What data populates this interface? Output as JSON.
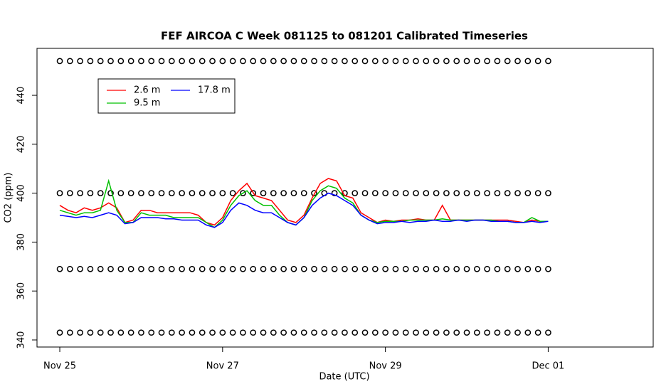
{
  "chart_data": {
    "type": "line",
    "title": "FEF AIRCOA C  Week 081125 to 081201  Calibrated Timeseries",
    "x_label": "Date (UTC)",
    "y_label": "CO2 (ppm)",
    "xlim": [
      -0.28,
      7.29
    ],
    "ylim": [
      337.1,
      459.2
    ],
    "xticks": [
      {
        "value": 0,
        "label": "Nov 25"
      },
      {
        "value": 2,
        "label": "Nov 27"
      },
      {
        "value": 4,
        "label": "Nov 29"
      },
      {
        "value": 6,
        "label": "Dec 01"
      }
    ],
    "yticks": [
      340,
      360,
      380,
      400,
      420,
      440
    ],
    "x": [
      0,
      0.1,
      0.2,
      0.3,
      0.4,
      0.5,
      0.6,
      0.7,
      0.8,
      0.9,
      1,
      1.1,
      1.2,
      1.3,
      1.4,
      1.5,
      1.6,
      1.7,
      1.8,
      1.9,
      2,
      2.1,
      2.2,
      2.3,
      2.4,
      2.5,
      2.6,
      2.7,
      2.8,
      2.9,
      3,
      3.1,
      3.2,
      3.3,
      3.4,
      3.5,
      3.6,
      3.7,
      3.8,
      3.9,
      4,
      4.1,
      4.2,
      4.3,
      4.4,
      4.5,
      4.6,
      4.7,
      4.8,
      4.9,
      5,
      5.1,
      5.2,
      5.3,
      5.4,
      5.5,
      5.6,
      5.7,
      5.8,
      5.9,
      6
    ],
    "series": [
      {
        "name": "2.6 m",
        "color": "#ff0000",
        "values": [
          395,
          393,
          392,
          394,
          393,
          394,
          396,
          394,
          388,
          389,
          393,
          393,
          392,
          392,
          392,
          392,
          392,
          391,
          388,
          387,
          390,
          397,
          401,
          404,
          399,
          398,
          397,
          393,
          389,
          388,
          391,
          398,
          404,
          406,
          405,
          399,
          398,
          392,
          390,
          388,
          389,
          388.5,
          389,
          389,
          389.5,
          389,
          389,
          395,
          389,
          389,
          389,
          389,
          389,
          389,
          389,
          389,
          388.5,
          388,
          389,
          388.5,
          388.5
        ]
      },
      {
        "name": "9.5 m",
        "color": "#00c000",
        "values": [
          393,
          392,
          391,
          392,
          392,
          393,
          405,
          393,
          388,
          388,
          392,
          391,
          391,
          391,
          390,
          390,
          390,
          390,
          388,
          386,
          389,
          395,
          399,
          401,
          397,
          395,
          395,
          391,
          388,
          387,
          390,
          397,
          401,
          403,
          402,
          398,
          396,
          391,
          389,
          388,
          388.5,
          388.5,
          388.5,
          389,
          389,
          389,
          389,
          389.5,
          389,
          389,
          389,
          389,
          389,
          389,
          388.5,
          388.5,
          388,
          388,
          390,
          388.5,
          388.5
        ]
      },
      {
        "name": "17.8 m",
        "color": "#0000ff",
        "values": [
          391,
          390.5,
          390,
          390.5,
          390,
          391,
          392,
          391,
          387.5,
          388,
          390,
          390,
          390,
          389.5,
          389.5,
          389,
          389,
          389,
          387,
          386,
          388,
          393,
          396,
          395,
          393,
          392,
          392,
          390,
          388,
          387,
          390,
          395,
          398,
          400,
          399,
          397,
          395,
          391,
          389,
          387.5,
          388,
          388,
          388.5,
          388,
          388.5,
          388.5,
          389,
          388.5,
          388.5,
          389,
          388.5,
          389,
          389,
          388.5,
          388.5,
          388.5,
          388,
          388,
          388.5,
          388,
          388.5
        ]
      }
    ],
    "markers": {
      "x": [
        0,
        0.125,
        0.25,
        0.375,
        0.5,
        0.625,
        0.75,
        0.875,
        1,
        1.125,
        1.25,
        1.375,
        1.5,
        1.625,
        1.75,
        1.875,
        2,
        2.125,
        2.25,
        2.375,
        2.5,
        2.625,
        2.75,
        2.875,
        3,
        3.125,
        3.25,
        3.375,
        3.5,
        3.625,
        3.75,
        3.875,
        4,
        4.125,
        4.25,
        4.375,
        4.5,
        4.625,
        4.75,
        4.875,
        5,
        5.125,
        5.25,
        5.375,
        5.5,
        5.625,
        5.75,
        5.875,
        6
      ],
      "series": [
        {
          "values": [
            454,
            454,
            454,
            454,
            454,
            454,
            454,
            454,
            454,
            454,
            454,
            454,
            454,
            454,
            454,
            454,
            454,
            454,
            454,
            454,
            454,
            454,
            454,
            454,
            454,
            454,
            454,
            454,
            454,
            454,
            454,
            454,
            454,
            454,
            454,
            454,
            454,
            454,
            454,
            454,
            454,
            454,
            454,
            454,
            454,
            454,
            454,
            454,
            454
          ]
        },
        {
          "values": [
            400,
            400,
            400,
            400,
            400,
            400,
            400,
            400,
            400,
            400,
            400,
            400,
            400,
            400,
            400,
            400,
            400,
            400,
            400,
            400,
            400,
            400,
            400,
            400,
            400,
            400,
            400,
            400,
            400,
            400,
            400,
            400,
            400,
            400,
            400,
            400,
            400,
            400,
            400,
            400,
            400,
            400,
            400,
            400,
            400,
            400,
            400,
            400,
            400
          ]
        },
        {
          "values": [
            369,
            369,
            369,
            369,
            369,
            369,
            369,
            369,
            369,
            369,
            369,
            369,
            369,
            369,
            369,
            369,
            369,
            369,
            369,
            369,
            369,
            369,
            369,
            369,
            369,
            369,
            369,
            369,
            369,
            369,
            369,
            369,
            369,
            369,
            369,
            369,
            369,
            369,
            369,
            369,
            369,
            369,
            369,
            369,
            369,
            369,
            369,
            369,
            369
          ]
        },
        {
          "values": [
            343,
            343,
            343,
            343,
            343,
            343,
            343,
            343,
            343,
            343,
            343,
            343,
            343,
            343,
            343,
            343,
            343,
            343,
            343,
            343,
            343,
            343,
            343,
            343,
            343,
            343,
            343,
            343,
            343,
            343,
            343,
            343,
            343,
            343,
            343,
            343,
            343,
            343,
            343,
            343,
            343,
            343,
            343,
            343,
            343,
            343,
            343,
            343,
            343
          ]
        }
      ]
    }
  }
}
